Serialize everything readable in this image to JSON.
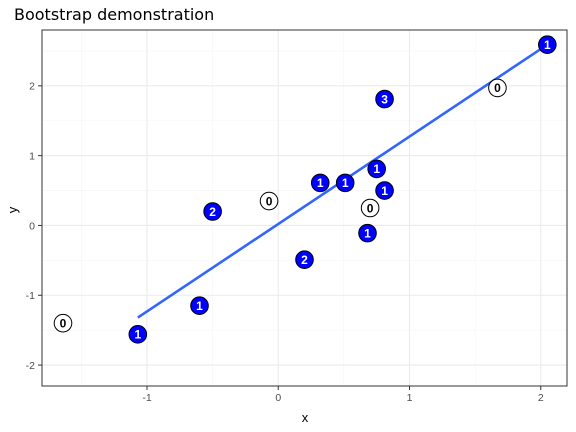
{
  "chart_data": {
    "type": "scatter",
    "title": "Bootstrap demonstration",
    "xlabel": "x",
    "ylabel": "y",
    "xlim": [
      -1.8,
      2.2
    ],
    "ylim": [
      -2.3,
      2.8
    ],
    "xticks": [
      -1,
      0,
      1,
      2
    ],
    "yticks": [
      -2,
      -1,
      0,
      1,
      2
    ],
    "xtick_labels": [
      "-1",
      "0",
      "1",
      "2"
    ],
    "ytick_labels": [
      "-2",
      "-1",
      "0",
      "1",
      "2"
    ],
    "grid": true,
    "points": [
      {
        "x": -1.64,
        "y": -1.4,
        "count": 0
      },
      {
        "x": -1.07,
        "y": -1.56,
        "count": 1
      },
      {
        "x": -0.6,
        "y": -1.15,
        "count": 1
      },
      {
        "x": -0.5,
        "y": 0.2,
        "count": 2
      },
      {
        "x": -0.07,
        "y": 0.35,
        "count": 0
      },
      {
        "x": 0.2,
        "y": -0.49,
        "count": 2
      },
      {
        "x": 0.32,
        "y": 0.61,
        "count": 1
      },
      {
        "x": 0.51,
        "y": 0.61,
        "count": 1
      },
      {
        "x": 0.68,
        "y": -0.11,
        "count": 1
      },
      {
        "x": 0.7,
        "y": 0.25,
        "count": 0
      },
      {
        "x": 0.75,
        "y": 0.81,
        "count": 1
      },
      {
        "x": 0.81,
        "y": 0.5,
        "count": 1
      },
      {
        "x": 0.81,
        "y": 1.81,
        "count": 3
      },
      {
        "x": 1.67,
        "y": 1.97,
        "count": 0
      },
      {
        "x": 2.05,
        "y": 2.59,
        "count": 1
      }
    ],
    "fit_line": {
      "x": [
        -1.07,
        2.05
      ],
      "y": [
        -1.32,
        2.59
      ],
      "color": "#3366FF"
    },
    "colors": {
      "filled": "#0000FF",
      "hollow": "#FFFFFF",
      "panel_border": "#333333",
      "grid_major": "#EBEBEB",
      "grid_minor": "#F5F5F5"
    }
  }
}
